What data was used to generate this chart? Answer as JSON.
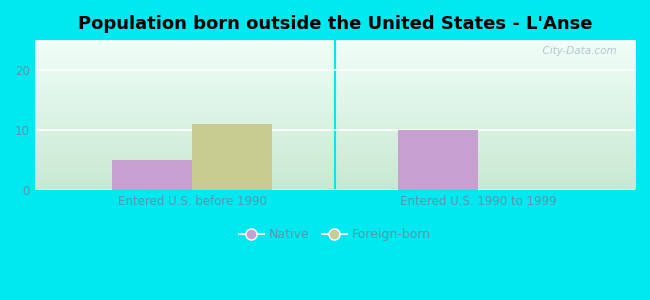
{
  "title": "Population born outside the United States - L'Anse",
  "groups": [
    "Entered U.S. before 1990",
    "Entered U.S. 1990 to 1999"
  ],
  "series": [
    {
      "label": "Native",
      "values": [
        5,
        10
      ],
      "color": "#c8a0d0"
    },
    {
      "label": "Foreign-born",
      "values": [
        11,
        0
      ],
      "color": "#c8cc90"
    }
  ],
  "ylim": [
    0,
    25
  ],
  "yticks": [
    0,
    10,
    20
  ],
  "bar_width": 0.28,
  "figure_bg": "#00e8f0",
  "plot_bg_topleft": "#cce8d8",
  "plot_bg_topright": "#e8f8f0",
  "plot_bg_bottomleft": "#c8e8d0",
  "plot_bg_bottomright": "#ffffff",
  "grid_color": "#ffffff",
  "title_fontsize": 13,
  "tick_fontsize": 8.5,
  "tick_color": "#5599aa",
  "legend_fontsize": 9,
  "legend_text_color": "#5599aa",
  "watermark": "  City-Data.com",
  "watermark_color": "#aabbcc"
}
